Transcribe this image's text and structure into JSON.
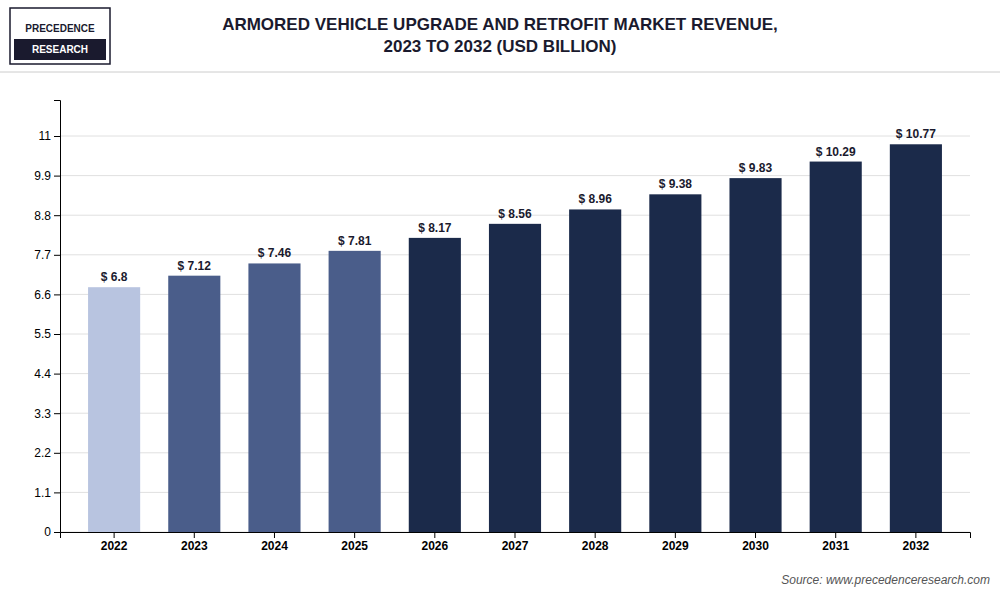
{
  "chart_data": {
    "type": "bar",
    "title": "ARMORED VEHICLE UPGRADE AND RETROFIT MARKET REVENUE,\n2023 TO 2032 (USD BILLION)",
    "categories": [
      "2022",
      "2023",
      "2024",
      "2025",
      "2026",
      "2027",
      "2028",
      "2029",
      "2030",
      "2031",
      "2032"
    ],
    "values": [
      6.8,
      7.12,
      7.46,
      7.81,
      8.17,
      8.56,
      8.96,
      9.38,
      9.83,
      10.29,
      10.77
    ],
    "value_labels": [
      "$ 6.8",
      "$ 7.12",
      "$ 7.46",
      "$ 7.81",
      "$ 8.17",
      "$ 8.56",
      "$ 8.96",
      "$ 9.38",
      "$ 9.83",
      "$ 10.29",
      "$ 10.77"
    ],
    "data_labels": true,
    "colors": [
      "#b8c4e0",
      "#4a5d8a",
      "#4a5d8a",
      "#4a5d8a",
      "#1b2a4a",
      "#1b2a4a",
      "#1b2a4a",
      "#1b2a4a",
      "#1b2a4a",
      "#1b2a4a",
      "#1b2a4a"
    ],
    "ylim": [
      0,
      12.0
    ],
    "yticks": [
      0,
      1.1,
      2.2,
      3.3,
      4.4,
      5.5,
      6.6,
      7.7,
      8.8,
      9.9,
      11
    ],
    "grid": true,
    "annotations": [
      "Source: www.precedenceresearch.com",
      "PRECEDENCE",
      "RESEARCH"
    ]
  }
}
